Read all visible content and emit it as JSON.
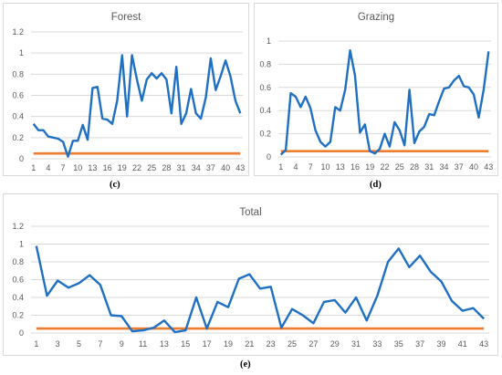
{
  "captions": {
    "c": "(c)",
    "d": "(d)",
    "e": "(e)"
  },
  "colors": {
    "series": "#1f6fc2",
    "threshold": "#ed7d31",
    "grid": "#d9d9d9",
    "text": "#595959"
  },
  "chart_data": [
    {
      "id": "forest",
      "type": "line",
      "title": "Forest",
      "x": [
        1,
        2,
        3,
        4,
        5,
        6,
        7,
        8,
        9,
        10,
        11,
        12,
        13,
        14,
        15,
        16,
        17,
        18,
        19,
        20,
        21,
        22,
        23,
        24,
        25,
        26,
        27,
        28,
        29,
        30,
        31,
        32,
        33,
        34,
        35,
        36,
        37,
        38,
        39,
        40,
        41,
        42,
        43
      ],
      "xticks": [
        1,
        4,
        7,
        10,
        13,
        16,
        19,
        22,
        25,
        28,
        31,
        34,
        37,
        40,
        43
      ],
      "ylim": [
        0,
        1.2
      ],
      "yticks": [
        0,
        0.2,
        0.4,
        0.6,
        0.8,
        1,
        1.2
      ],
      "ytick_labels": [
        "0",
        "0.2",
        "0.4",
        "0.6",
        "0.8",
        "1",
        "1.2"
      ],
      "grid": true,
      "series": [
        {
          "values": [
            0.33,
            0.27,
            0.27,
            0.21,
            0.2,
            0.19,
            0.16,
            0.02,
            0.17,
            0.17,
            0.32,
            0.18,
            0.67,
            0.68,
            0.38,
            0.37,
            0.33,
            0.55,
            0.98,
            0.4,
            0.98,
            0.75,
            0.55,
            0.75,
            0.81,
            0.76,
            0.81,
            0.75,
            0.43,
            0.87,
            0.33,
            0.43,
            0.66,
            0.43,
            0.38,
            0.58,
            0.95,
            0.65,
            0.78,
            0.93,
            0.78,
            0.55,
            0.43
          ]
        },
        {
          "values": [
            0.05,
            0.05,
            0.05,
            0.05,
            0.05,
            0.05,
            0.05,
            0.05,
            0.05,
            0.05,
            0.05,
            0.05,
            0.05,
            0.05,
            0.05,
            0.05,
            0.05,
            0.05,
            0.05,
            0.05,
            0.05,
            0.05,
            0.05,
            0.05,
            0.05,
            0.05,
            0.05,
            0.05,
            0.05,
            0.05,
            0.05,
            0.05,
            0.05,
            0.05,
            0.05,
            0.05,
            0.05,
            0.05,
            0.05,
            0.05,
            0.05,
            0.05,
            0.05
          ]
        }
      ]
    },
    {
      "id": "grazing",
      "type": "line",
      "title": "Grazing",
      "x": [
        1,
        2,
        3,
        4,
        5,
        6,
        7,
        8,
        9,
        10,
        11,
        12,
        13,
        14,
        15,
        16,
        17,
        18,
        19,
        20,
        21,
        22,
        23,
        24,
        25,
        26,
        27,
        28,
        29,
        30,
        31,
        32,
        33,
        34,
        35,
        36,
        37,
        38,
        39,
        40,
        41,
        42,
        43
      ],
      "xticks": [
        1,
        4,
        7,
        10,
        13,
        16,
        19,
        22,
        25,
        28,
        31,
        34,
        37,
        40,
        43
      ],
      "ylim": [
        0,
        1
      ],
      "yticks": [
        0,
        0.2,
        0.4,
        0.6,
        0.8,
        1
      ],
      "ytick_labels": [
        "0",
        "0.2",
        "0.4",
        "0.6",
        "0.8",
        "1"
      ],
      "grid": true,
      "series": [
        {
          "values": [
            0.02,
            0.06,
            0.55,
            0.52,
            0.43,
            0.52,
            0.42,
            0.23,
            0.13,
            0.09,
            0.13,
            0.43,
            0.4,
            0.58,
            0.92,
            0.7,
            0.21,
            0.28,
            0.05,
            0.03,
            0.07,
            0.2,
            0.09,
            0.3,
            0.23,
            0.1,
            0.58,
            0.12,
            0.22,
            0.26,
            0.37,
            0.36,
            0.48,
            0.59,
            0.6,
            0.66,
            0.7,
            0.61,
            0.6,
            0.54,
            0.34,
            0.58,
            0.91
          ]
        },
        {
          "values": [
            0.05,
            0.05,
            0.05,
            0.05,
            0.05,
            0.05,
            0.05,
            0.05,
            0.05,
            0.05,
            0.05,
            0.05,
            0.05,
            0.05,
            0.05,
            0.05,
            0.05,
            0.05,
            0.05,
            0.05,
            0.05,
            0.05,
            0.05,
            0.05,
            0.05,
            0.05,
            0.05,
            0.05,
            0.05,
            0.05,
            0.05,
            0.05,
            0.05,
            0.05,
            0.05,
            0.05,
            0.05,
            0.05,
            0.05,
            0.05,
            0.05,
            0.05,
            0.05
          ]
        }
      ]
    },
    {
      "id": "total",
      "type": "line",
      "title": "Total",
      "x": [
        1,
        2,
        3,
        4,
        5,
        6,
        7,
        8,
        9,
        10,
        11,
        12,
        13,
        14,
        15,
        16,
        17,
        18,
        19,
        20,
        21,
        22,
        23,
        24,
        25,
        26,
        27,
        28,
        29,
        30,
        31,
        32,
        33,
        34,
        35,
        36,
        37,
        38,
        39,
        40,
        41,
        42,
        43
      ],
      "xticks": [
        1,
        3,
        5,
        7,
        9,
        11,
        13,
        15,
        17,
        19,
        21,
        23,
        25,
        27,
        29,
        31,
        33,
        35,
        37,
        39,
        41,
        43
      ],
      "ylim": [
        0,
        1.2
      ],
      "yticks": [
        0,
        0.2,
        0.4,
        0.6,
        0.8,
        1,
        1.2
      ],
      "ytick_labels": [
        "0",
        "0.2",
        "0.4",
        "0.6",
        "0.8",
        "1",
        "1.2"
      ],
      "grid": true,
      "series": [
        {
          "values": [
            0.98,
            0.42,
            0.59,
            0.51,
            0.56,
            0.65,
            0.54,
            0.2,
            0.19,
            0.02,
            0.03,
            0.06,
            0.14,
            0.01,
            0.03,
            0.4,
            0.05,
            0.35,
            0.29,
            0.61,
            0.66,
            0.5,
            0.52,
            0.06,
            0.27,
            0.2,
            0.11,
            0.35,
            0.37,
            0.23,
            0.4,
            0.14,
            0.42,
            0.8,
            0.95,
            0.74,
            0.87,
            0.69,
            0.58,
            0.36,
            0.25,
            0.28,
            0.16
          ]
        },
        {
          "values": [
            0.05,
            0.05,
            0.05,
            0.05,
            0.05,
            0.05,
            0.05,
            0.05,
            0.05,
            0.05,
            0.05,
            0.05,
            0.05,
            0.05,
            0.05,
            0.05,
            0.05,
            0.05,
            0.05,
            0.05,
            0.05,
            0.05,
            0.05,
            0.05,
            0.05,
            0.05,
            0.05,
            0.05,
            0.05,
            0.05,
            0.05,
            0.05,
            0.05,
            0.05,
            0.05,
            0.05,
            0.05,
            0.05,
            0.05,
            0.05,
            0.05,
            0.05,
            0.05
          ]
        }
      ]
    }
  ]
}
